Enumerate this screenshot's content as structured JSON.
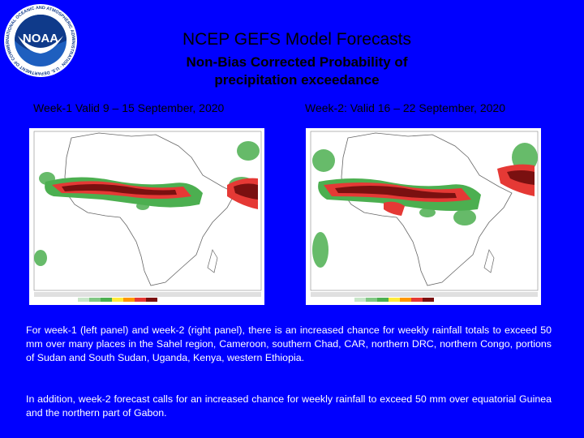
{
  "header": {
    "logo_text": "NOAA",
    "logo_ring_text": "NATIONAL OCEANIC AND ATMOSPHERIC ADMINISTRATION · U.S. DEPARTMENT OF COMMERCE",
    "title": "NCEP GEFS Model Forecasts",
    "subtitle_line1": "Non-Bias Corrected Probability of",
    "subtitle_line2": "precipitation exceedance"
  },
  "panels": {
    "left": {
      "label": "Week-1 Valid 9 – 15 September, 2020"
    },
    "right": {
      "label": "Week-2: Valid 16 – 22 September, 2020"
    }
  },
  "colors": {
    "background": "#0000ff",
    "low_prob": "#4caf50",
    "mid_prob": "#e53935",
    "high_prob": "#7a1010"
  },
  "description": {
    "paragraph1": "For week-1 (left panel) and week-2 (right panel), there is an increased chance for weekly rainfall totals to exceed 50 mm over many places in the Sahel region, Cameroon, southern Chad, CAR, northern DRC, northern Congo, portions of Sudan and South Sudan, Uganda, Kenya, western Ethiopia.",
    "paragraph2": "In addition, week-2 forecast calls for an increased chance for weekly rainfall to exceed 50 mm over equatorial Guinea and the northern part of Gabon."
  }
}
